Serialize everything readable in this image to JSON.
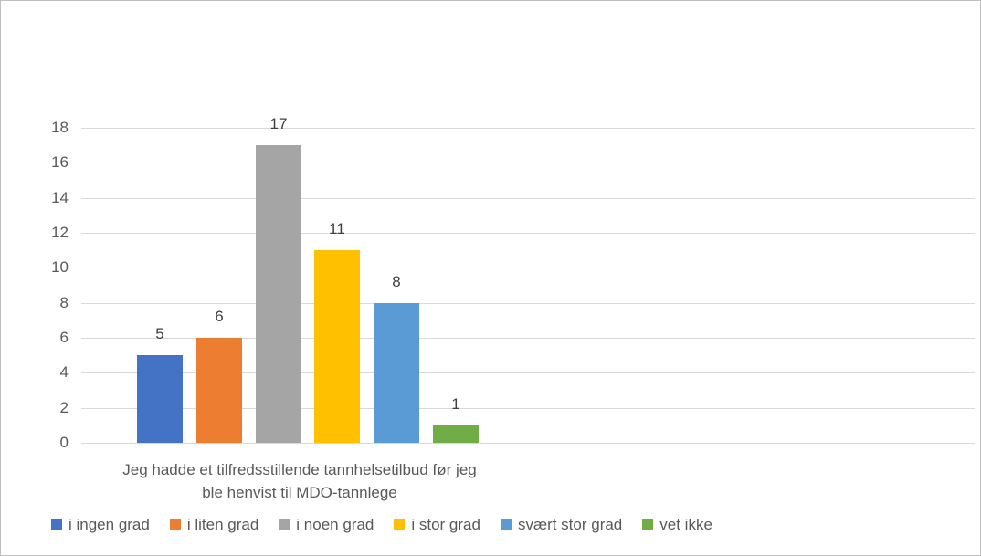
{
  "chart_data": {
    "type": "bar",
    "title": "",
    "categories": [
      "Jeg hadde et tilfredsstillende tannhelsetilbud før jeg ble henvist til MDO-tannlege"
    ],
    "category_label_lines": [
      "Jeg hadde et tilfredsstillende tannhelsetilbud før jeg",
      "ble henvist til MDO-tannlege"
    ],
    "series": [
      {
        "name": "i ingen grad",
        "value": 5,
        "color": "#4472C4"
      },
      {
        "name": "i liten grad",
        "value": 6,
        "color": "#ED7D31"
      },
      {
        "name": "i noen grad",
        "value": 17,
        "color": "#A5A5A5"
      },
      {
        "name": "i stor grad",
        "value": 11,
        "color": "#FFC000"
      },
      {
        "name": "svært stor grad",
        "value": 8,
        "color": "#5B9BD5"
      },
      {
        "name": "vet ikke",
        "value": 1,
        "color": "#70AD47"
      }
    ],
    "ylim": [
      0,
      18
    ],
    "ytick_step": 2,
    "yticks": [
      0,
      2,
      4,
      6,
      8,
      10,
      12,
      14,
      16,
      18
    ],
    "grid": true,
    "legend_position": "bottom",
    "data_labels": true
  },
  "colors": {
    "gridline": "#D9D9D9",
    "axis_text": "#595959",
    "data_label_text": "#404040",
    "border": "#BFBFBF",
    "background": "#FFFFFF"
  }
}
